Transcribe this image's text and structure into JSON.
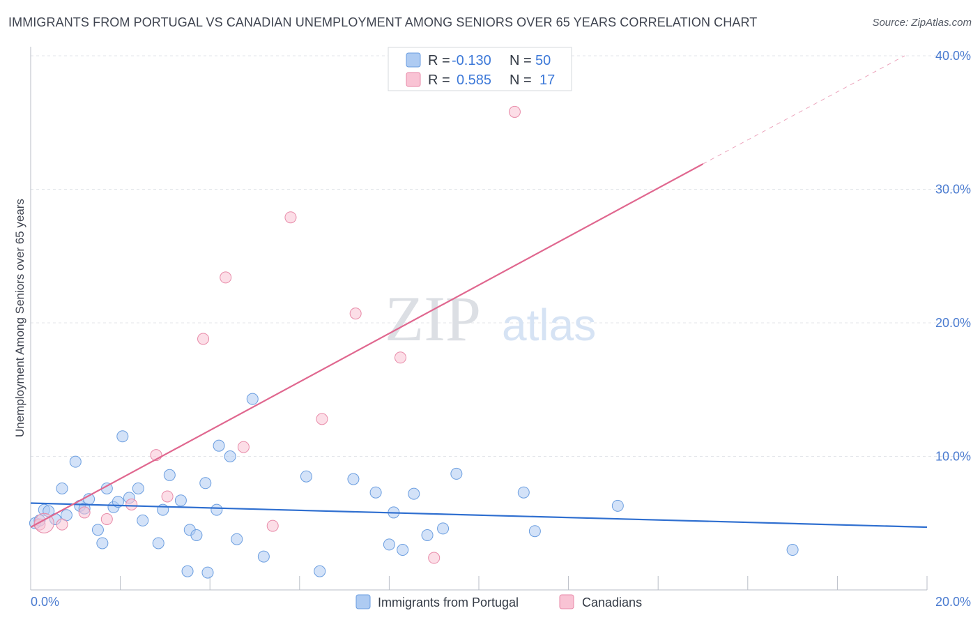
{
  "header": {
    "title": "IMMIGRANTS FROM PORTUGAL VS CANADIAN UNEMPLOYMENT AMONG SENIORS OVER 65 YEARS CORRELATION CHART",
    "source": "Source: ZipAtlas.com"
  },
  "watermark": {
    "zip": "ZIP",
    "atlas": "atlas"
  },
  "legend": {
    "r_label": "R =",
    "n_label": "N =",
    "entries": [
      {
        "name": "Immigrants from Portugal",
        "r": "-0.130",
        "n": "50",
        "color": "#aecbf2",
        "stroke": "#6b9ee0"
      },
      {
        "name": "Canadians",
        "r": "0.585",
        "n": "17",
        "color": "#f9c3d4",
        "stroke": "#e88aa8"
      }
    ]
  },
  "chart_data": {
    "type": "scatter",
    "title": "IMMIGRANTS FROM PORTUGAL VS CANADIAN UNEMPLOYMENT AMONG SENIORS OVER 65 YEARS CORRELATION CHART",
    "xlabel": "",
    "ylabel": "Unemployment Among Seniors over 65 years",
    "xlim": [
      0,
      20
    ],
    "ylim": [
      0,
      40
    ],
    "x_tick_labels": [
      "0.0%",
      "20.0%"
    ],
    "y_ticks": [
      10,
      20,
      30,
      40
    ],
    "y_tick_labels": [
      "10.0%",
      "20.0%",
      "30.0%",
      "40.0%"
    ],
    "series": [
      {
        "name": "Immigrants from Portugal",
        "color": "#aecbf2",
        "stroke": "#6b9ee0",
        "trend": {
          "x0": 0,
          "y0": 6.5,
          "x1": 20,
          "y1": 4.7,
          "color": "#2f6fd0"
        },
        "points": [
          [
            0.1,
            5.0
          ],
          [
            0.2,
            5.2
          ],
          [
            0.3,
            6.0
          ],
          [
            0.4,
            5.9
          ],
          [
            0.55,
            5.3
          ],
          [
            0.7,
            7.6
          ],
          [
            0.8,
            5.6
          ],
          [
            1.0,
            9.6
          ],
          [
            1.1,
            6.3
          ],
          [
            1.2,
            6.1
          ],
          [
            1.3,
            6.8
          ],
          [
            1.5,
            4.5
          ],
          [
            1.6,
            3.5
          ],
          [
            1.7,
            7.6
          ],
          [
            1.85,
            6.2
          ],
          [
            1.95,
            6.6
          ],
          [
            2.05,
            11.5
          ],
          [
            2.2,
            6.9
          ],
          [
            2.4,
            7.6
          ],
          [
            2.5,
            5.2
          ],
          [
            2.85,
            3.5
          ],
          [
            2.95,
            6.0
          ],
          [
            3.1,
            8.6
          ],
          [
            3.35,
            6.7
          ],
          [
            3.5,
            1.4
          ],
          [
            3.55,
            4.5
          ],
          [
            3.7,
            4.1
          ],
          [
            3.9,
            8.0
          ],
          [
            3.95,
            1.3
          ],
          [
            4.15,
            6.0
          ],
          [
            4.2,
            10.8
          ],
          [
            4.45,
            10.0
          ],
          [
            4.6,
            3.8
          ],
          [
            4.95,
            14.3
          ],
          [
            5.2,
            2.5
          ],
          [
            6.15,
            8.5
          ],
          [
            6.45,
            1.4
          ],
          [
            7.2,
            8.3
          ],
          [
            7.7,
            7.3
          ],
          [
            8.0,
            3.4
          ],
          [
            8.1,
            5.8
          ],
          [
            8.3,
            3.0
          ],
          [
            8.55,
            7.2
          ],
          [
            8.85,
            4.1
          ],
          [
            9.2,
            4.6
          ],
          [
            9.5,
            8.7
          ],
          [
            11.0,
            7.3
          ],
          [
            11.25,
            4.4
          ],
          [
            13.1,
            6.3
          ],
          [
            17.0,
            3.0
          ]
        ]
      },
      {
        "name": "Canadians",
        "color": "#f9c3d4",
        "stroke": "#e88aa8",
        "trend": {
          "x0": 0,
          "y0": 4.7,
          "x1": 15.0,
          "y1": 31.9,
          "x2": 19.5,
          "y2": 40.0,
          "color": "#e0678f"
        },
        "points": [
          [
            0.2,
            4.9
          ],
          [
            0.7,
            4.9
          ],
          [
            1.2,
            5.8
          ],
          [
            1.7,
            5.3
          ],
          [
            2.25,
            6.4
          ],
          [
            2.8,
            10.1
          ],
          [
            3.05,
            7.0
          ],
          [
            3.85,
            18.8
          ],
          [
            4.35,
            23.4
          ],
          [
            4.75,
            10.7
          ],
          [
            5.4,
            4.8
          ],
          [
            5.8,
            27.9
          ],
          [
            6.5,
            12.8
          ],
          [
            7.25,
            20.7
          ],
          [
            8.25,
            17.4
          ],
          [
            9.0,
            2.4
          ],
          [
            10.8,
            35.8
          ]
        ]
      }
    ]
  }
}
